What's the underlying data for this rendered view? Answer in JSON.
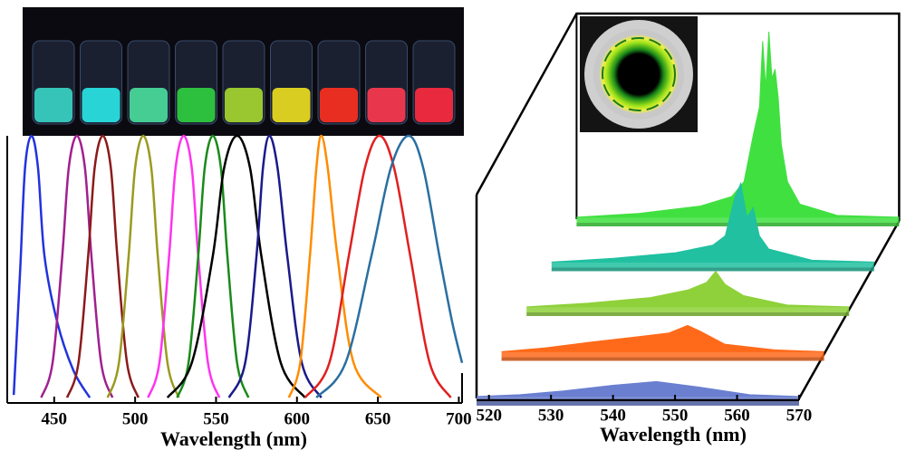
{
  "chart_data": [
    {
      "type": "line",
      "x_label": "Wavelength (nm)",
      "xlim": [
        421,
        702
      ],
      "ylim": [
        0,
        1
      ],
      "xticks": [
        450,
        500,
        550,
        600,
        650,
        700
      ],
      "series": [
        {
          "color": "#2233dd",
          "x": [
            425,
            429,
            432,
            436,
            440,
            444,
            452,
            462,
            472
          ],
          "values": [
            0.03,
            0.5,
            0.88,
            1,
            0.88,
            0.55,
            0.3,
            0.12,
            0.02
          ]
        },
        {
          "color": "#a0208f",
          "x": [
            442,
            449,
            455,
            459,
            464,
            469,
            473,
            479,
            486
          ],
          "values": [
            0.02,
            0.15,
            0.55,
            0.88,
            1,
            0.88,
            0.55,
            0.15,
            0.02
          ]
        },
        {
          "color": "#8b1a1a",
          "x": [
            458,
            465,
            471,
            475,
            480,
            485,
            489,
            495,
            502
          ],
          "values": [
            0.02,
            0.15,
            0.55,
            0.88,
            1,
            0.88,
            0.55,
            0.15,
            0.02
          ]
        },
        {
          "color": "#9a9a20",
          "x": [
            483,
            490,
            496,
            500,
            505,
            510,
            514,
            520,
            527
          ],
          "values": [
            0.02,
            0.15,
            0.55,
            0.88,
            1,
            0.88,
            0.55,
            0.15,
            0.02
          ]
        },
        {
          "color": "#ff33ee",
          "x": [
            508,
            515,
            521,
            525,
            530,
            535,
            539,
            545,
            552
          ],
          "values": [
            0.02,
            0.15,
            0.55,
            0.88,
            1,
            0.88,
            0.55,
            0.15,
            0.02
          ]
        },
        {
          "color": "#1a8a1a",
          "x": [
            526,
            533,
            539,
            543,
            548,
            553,
            557,
            563,
            570
          ],
          "values": [
            0.02,
            0.15,
            0.55,
            0.88,
            1,
            0.88,
            0.55,
            0.15,
            0.02
          ]
        },
        {
          "color": "#000000",
          "x": [
            520,
            535,
            548,
            555,
            563,
            571,
            578,
            590,
            605
          ],
          "values": [
            0.02,
            0.15,
            0.55,
            0.88,
            1,
            0.88,
            0.55,
            0.15,
            0.02
          ]
        },
        {
          "color": "#1a1a8a",
          "x": [
            558,
            568,
            575,
            579,
            583,
            588,
            594,
            603,
            615
          ],
          "values": [
            0.02,
            0.15,
            0.55,
            0.88,
            1,
            0.88,
            0.55,
            0.15,
            0.02
          ]
        },
        {
          "color": "#ff8c00",
          "x": [
            595,
            602,
            608,
            612,
            615,
            619,
            625,
            635,
            652
          ],
          "values": [
            0.02,
            0.15,
            0.55,
            0.88,
            1,
            0.88,
            0.55,
            0.15,
            0.02
          ]
        },
        {
          "color": "#e02020",
          "x": [
            605,
            620,
            632,
            642,
            651,
            660,
            670,
            682,
            695
          ],
          "values": [
            0.02,
            0.15,
            0.55,
            0.88,
            1,
            0.88,
            0.55,
            0.15,
            0.02
          ]
        },
        {
          "color": "#2a6fa0",
          "x": [
            612,
            630,
            646,
            658,
            669,
            678,
            688,
            696,
            702
          ],
          "values": [
            0.02,
            0.15,
            0.55,
            0.88,
            1,
            0.88,
            0.55,
            0.3,
            0.15
          ]
        }
      ]
    },
    {
      "type": "area",
      "x_label": "Wavelength (nm)",
      "xlim": [
        518,
        570
      ],
      "ylim": [
        0,
        1
      ],
      "xticks": [
        520,
        530,
        540,
        550,
        560,
        570
      ],
      "series": [
        {
          "color": "#6a7fd0",
          "x": [
            518,
            525,
            532,
            540,
            547,
            554,
            562,
            570
          ],
          "values": [
            0.01,
            0.02,
            0.04,
            0.07,
            0.09,
            0.06,
            0.02,
            0.01
          ]
        },
        {
          "color": "#ff6a1a",
          "x": [
            518,
            525,
            532,
            540,
            545,
            548,
            550,
            554,
            562,
            570
          ],
          "values": [
            0.01,
            0.03,
            0.06,
            0.09,
            0.11,
            0.15,
            0.12,
            0.05,
            0.02,
            0.01
          ]
        },
        {
          "color": "#8ed13a",
          "x": [
            518,
            528,
            538,
            544,
            547,
            548.5,
            550,
            553,
            560,
            570
          ],
          "values": [
            0.01,
            0.03,
            0.06,
            0.1,
            0.14,
            0.2,
            0.13,
            0.07,
            0.02,
            0.01
          ]
        },
        {
          "color": "#20c0a0",
          "x": [
            518,
            528,
            538,
            544,
            546,
            547.5,
            548.5,
            549.5,
            550.5,
            551.5,
            553,
            560,
            570
          ],
          "values": [
            0.01,
            0.03,
            0.06,
            0.1,
            0.15,
            0.35,
            0.43,
            0.25,
            0.3,
            0.15,
            0.08,
            0.02,
            0.01
          ]
        },
        {
          "color": "#40e040",
          "x": [
            518,
            528,
            538,
            543,
            545,
            546.5,
            547.5,
            548,
            548.5,
            549,
            549.5,
            550,
            550.5,
            551,
            552,
            554,
            560,
            570
          ],
          "values": [
            0.01,
            0.03,
            0.07,
            0.12,
            0.2,
            0.45,
            0.6,
            0.95,
            0.7,
            1,
            0.75,
            0.8,
            0.65,
            0.4,
            0.2,
            0.08,
            0.02,
            0.01
          ]
        }
      ]
    }
  ]
}
